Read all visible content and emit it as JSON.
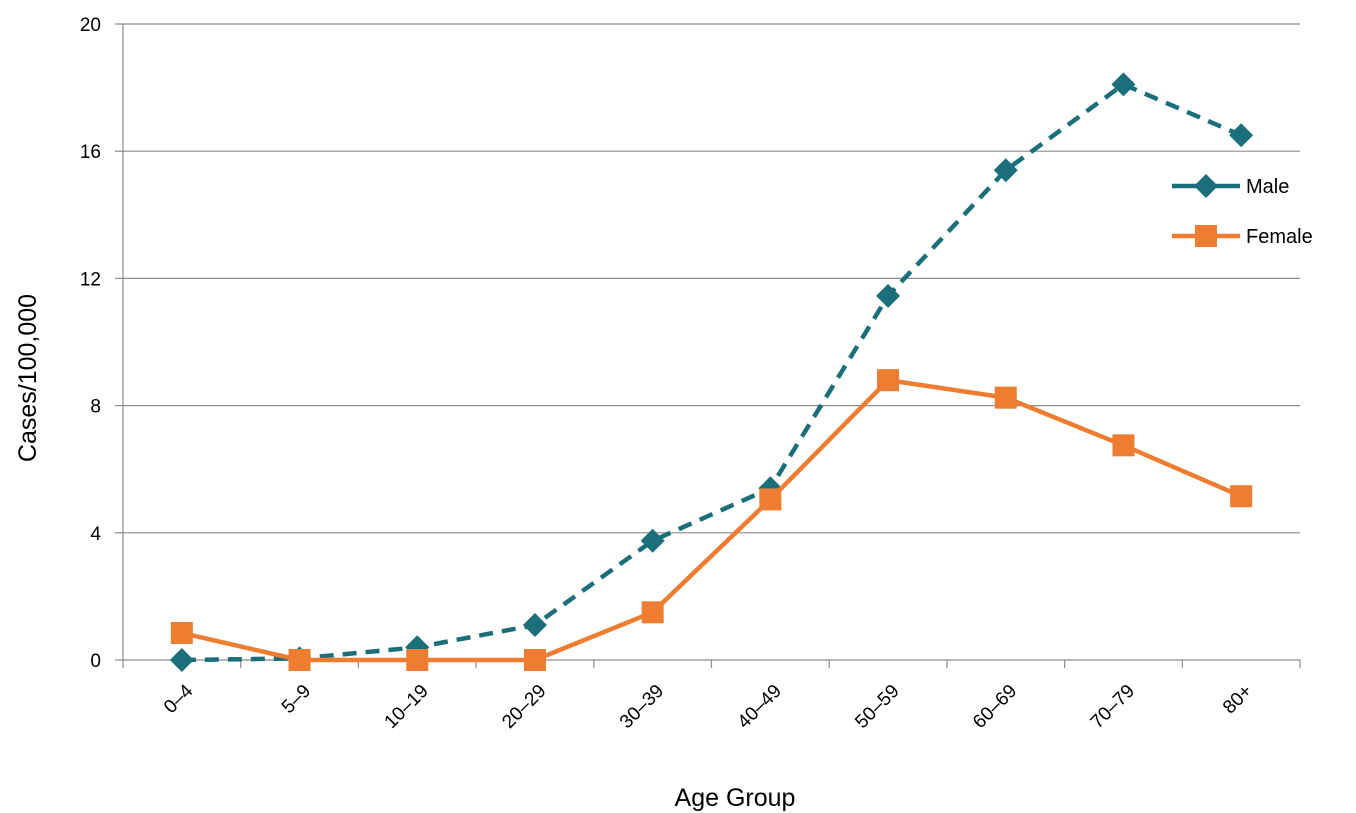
{
  "chart_data": {
    "type": "line",
    "title": "",
    "xlabel": "Age Group",
    "ylabel": "Cases/100,000",
    "categories": [
      "0–4",
      "5–9",
      "10–19",
      "20–29",
      "30–39",
      "40–49",
      "50–59",
      "60–69",
      "70–79",
      "80+"
    ],
    "ylim": [
      0,
      20
    ],
    "yticks": [
      0,
      4,
      8,
      12,
      16,
      20
    ],
    "grid": true,
    "legend_position": "right",
    "series": [
      {
        "name": "Male",
        "color": "#1b6f7a",
        "line_style": "dashed",
        "marker": "diamond",
        "values": [
          0,
          0.05,
          0.4,
          1.1,
          3.75,
          5.4,
          11.45,
          15.4,
          18.1,
          16.5
        ]
      },
      {
        "name": "Female",
        "color": "#ee7d31",
        "line_style": "solid",
        "marker": "square",
        "values": [
          0.85,
          0,
          0,
          0,
          1.5,
          5.05,
          8.8,
          8.25,
          6.75,
          5.15
        ]
      }
    ]
  }
}
